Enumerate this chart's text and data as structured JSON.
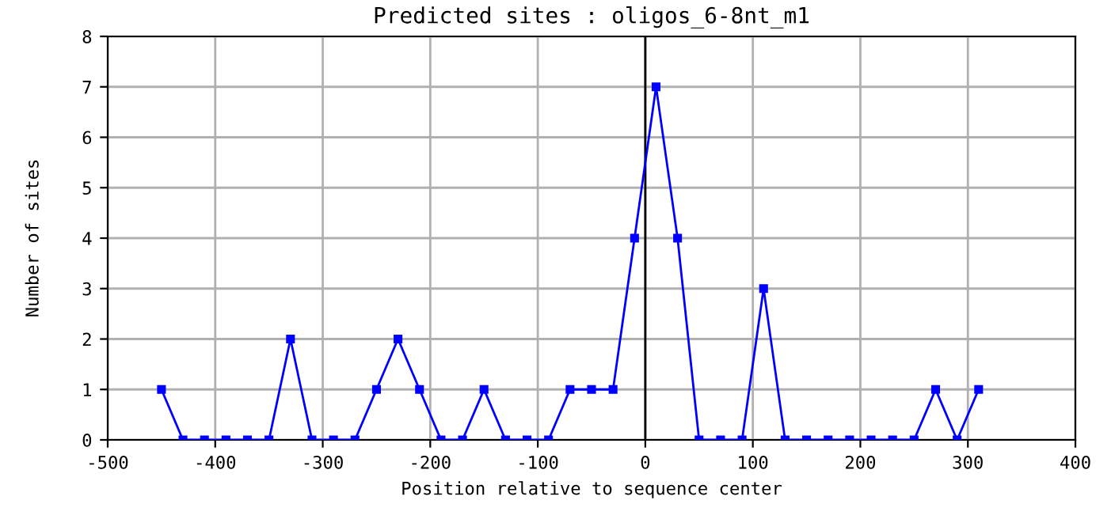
{
  "chart_data": {
    "type": "line",
    "title": "Predicted sites : oligos_6-8nt_m1",
    "xlabel": "Position relative to sequence center",
    "ylabel": "Number of sites",
    "x": [
      -450,
      -430,
      -410,
      -390,
      -370,
      -350,
      -330,
      -310,
      -290,
      -270,
      -250,
      -230,
      -210,
      -190,
      -170,
      -150,
      -130,
      -110,
      -90,
      -70,
      -50,
      -30,
      -10,
      10,
      30,
      50,
      70,
      90,
      110,
      130,
      150,
      170,
      190,
      210,
      230,
      250,
      270,
      290,
      310
    ],
    "series": [
      {
        "color": "#0000ff",
        "values": [
          1,
          0,
          0,
          0,
          0,
          0,
          2,
          0,
          0,
          0,
          1,
          2,
          1,
          0,
          0,
          1,
          0,
          0,
          0,
          1,
          1,
          1,
          4,
          7,
          4,
          0,
          0,
          0,
          3,
          0,
          0,
          0,
          0,
          0,
          0,
          0,
          1,
          0,
          1
        ]
      }
    ],
    "xlim": [
      -500,
      400
    ],
    "xticks": [
      -500,
      -400,
      -300,
      -200,
      -100,
      0,
      100,
      200,
      300,
      400
    ],
    "ylim": [
      0,
      8
    ],
    "yticks": [
      0,
      1,
      2,
      3,
      4,
      5,
      6,
      7,
      8
    ],
    "ref_lines": [
      {
        "axis": "x",
        "value": 0,
        "color": "#000000"
      }
    ],
    "grid": true,
    "marker": "square",
    "line_style": "solid",
    "legend": false
  }
}
